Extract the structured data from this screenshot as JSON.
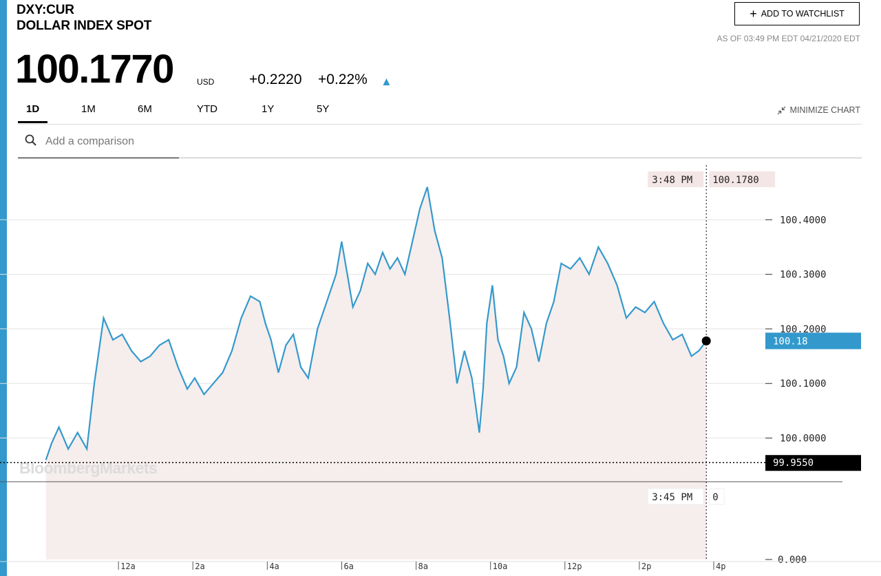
{
  "header": {
    "ticker": "DXY:CUR",
    "name": "DOLLAR INDEX SPOT",
    "price": "100.1770",
    "currency": "USD",
    "change": "+0.2220",
    "change_pct": "+0.22%",
    "as_of": "AS OF 03:49 PM EDT 04/21/2020 EDT",
    "watchlist_label": "ADD TO WATCHLIST"
  },
  "tabs": [
    {
      "label": "1D",
      "active": true
    },
    {
      "label": "1M",
      "active": false
    },
    {
      "label": "6M",
      "active": false
    },
    {
      "label": "YTD",
      "active": false
    },
    {
      "label": "1Y",
      "active": false
    },
    {
      "label": "5Y",
      "active": false
    }
  ],
  "minimize_label": "MINIMIZE CHART",
  "search": {
    "placeholder": "Add a comparison"
  },
  "watermark": "BloombergMarkets",
  "colors": {
    "accent": "#3399cc",
    "line": "#3399cc",
    "fill": "#f6eded",
    "open_line": "#dd4444"
  },
  "chart_data": {
    "type": "line",
    "y_ticks": [
      "100.4000",
      "100.3000",
      "100.2000",
      "100.1000",
      "100.0000"
    ],
    "y_tick_values": [
      100.4,
      100.3,
      100.2,
      100.1,
      100.0
    ],
    "ylim": [
      99.92,
      100.5
    ],
    "x_tick_labels": [
      "12a",
      "2a",
      "4a",
      "6a",
      "8a",
      "10a",
      "12p",
      "2p",
      "4p"
    ],
    "x_tick_hours": [
      0,
      2,
      4,
      6,
      8,
      10,
      12,
      14,
      16
    ],
    "x_range_hours": [
      -2.0,
      16.0
    ],
    "crosshair": {
      "time": "3:48 PM",
      "value": "100.1780",
      "hour": 15.8,
      "y": 100.178
    },
    "last_value_label": "100.18",
    "previous_close": {
      "label": "99.9550",
      "value": 99.955
    },
    "volume_panel": {
      "time": "3:45 PM",
      "value": "0",
      "axis_zero": "0.000"
    },
    "series": [
      {
        "x": [
          -1.95,
          -1.8,
          -1.6,
          -1.35,
          -1.1,
          -0.85,
          -0.65,
          -0.4,
          -0.15,
          0.1,
          0.35,
          0.6,
          0.85,
          1.1,
          1.35,
          1.6,
          1.85,
          2.05,
          2.3,
          2.55,
          2.8,
          3.05,
          3.3,
          3.55,
          3.8,
          3.95,
          4.1,
          4.3,
          4.5,
          4.7,
          4.9,
          5.1,
          5.35,
          5.6,
          5.85,
          6.0,
          6.15,
          6.3,
          6.5,
          6.7,
          6.9,
          7.1,
          7.3,
          7.5,
          7.7,
          7.9,
          8.1,
          8.3,
          8.5,
          8.7,
          8.9,
          9.1,
          9.3,
          9.5,
          9.7,
          9.8,
          9.9,
          10.05,
          10.2,
          10.35,
          10.5,
          10.7,
          10.9,
          11.1,
          11.3,
          11.5,
          11.7,
          11.9,
          12.15,
          12.4,
          12.65,
          12.9,
          13.15,
          13.4,
          13.65,
          13.9,
          14.15,
          14.4,
          14.65,
          14.9,
          15.15,
          15.4,
          15.6,
          15.8
        ],
        "y": [
          99.96,
          99.99,
          100.02,
          99.98,
          100.01,
          99.98,
          100.1,
          100.22,
          100.18,
          100.19,
          100.16,
          100.14,
          100.15,
          100.17,
          100.18,
          100.13,
          100.09,
          100.11,
          100.08,
          100.1,
          100.12,
          100.16,
          100.22,
          100.26,
          100.25,
          100.21,
          100.18,
          100.12,
          100.17,
          100.19,
          100.13,
          100.11,
          100.2,
          100.25,
          100.3,
          100.36,
          100.3,
          100.24,
          100.27,
          100.32,
          100.3,
          100.34,
          100.31,
          100.33,
          100.3,
          100.36,
          100.42,
          100.46,
          100.38,
          100.33,
          100.22,
          100.1,
          100.16,
          100.11,
          100.01,
          100.09,
          100.21,
          100.28,
          100.18,
          100.15,
          100.1,
          100.13,
          100.23,
          100.2,
          100.14,
          100.21,
          100.25,
          100.32,
          100.31,
          100.33,
          100.3,
          100.35,
          100.32,
          100.28,
          100.22,
          100.24,
          100.23,
          100.25,
          100.21,
          100.18,
          100.19,
          100.15,
          100.16,
          100.178
        ]
      }
    ]
  }
}
